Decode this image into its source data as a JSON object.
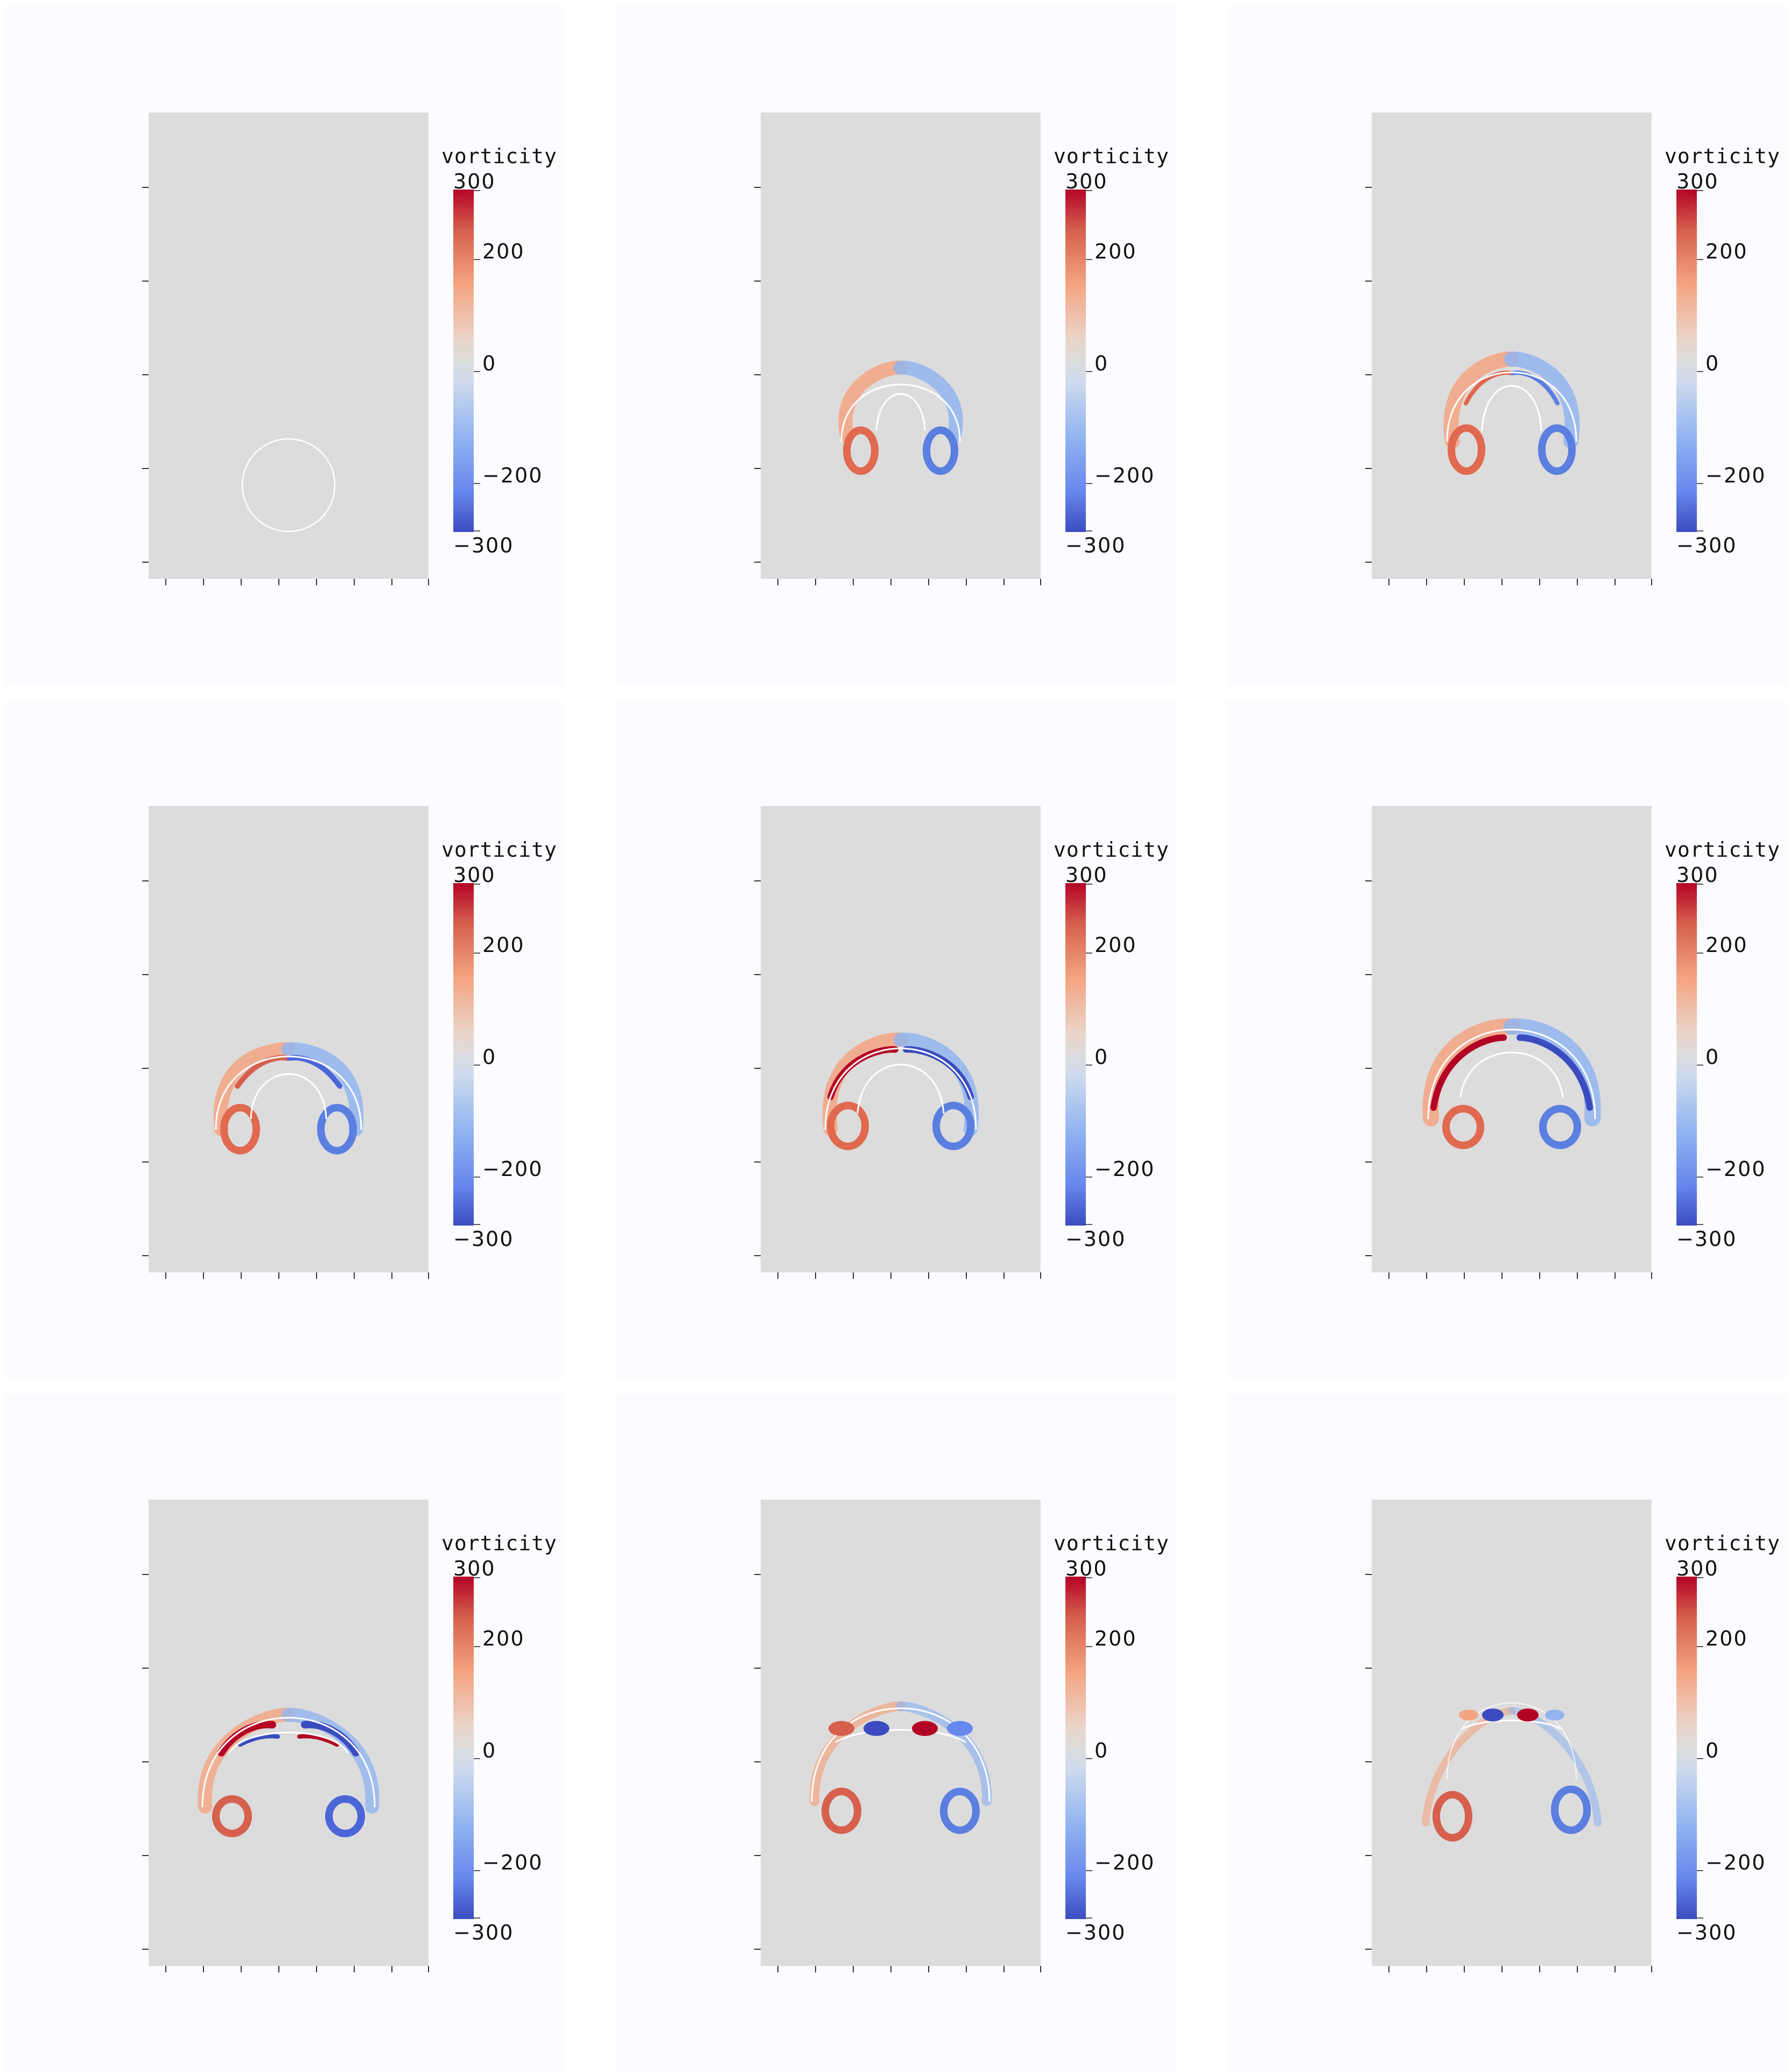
{
  "panels": [
    {
      "colorbar": {
        "title": "vorticity",
        "ticks": [
          "300",
          "200",
          "0",
          "−200",
          "−300"
        ]
      }
    },
    {
      "colorbar": {
        "title": "vorticity",
        "ticks": [
          "300",
          "200",
          "0",
          "−200",
          "−300"
        ]
      }
    },
    {
      "colorbar": {
        "title": "vorticity",
        "ticks": [
          "300",
          "200",
          "0",
          "−200",
          "−300"
        ]
      }
    },
    {
      "colorbar": {
        "title": "vorticity",
        "ticks": [
          "300",
          "200",
          "0",
          "−200",
          "−300"
        ]
      }
    },
    {
      "colorbar": {
        "title": "vorticity",
        "ticks": [
          "300",
          "200",
          "0",
          "−200",
          "−300"
        ]
      }
    },
    {
      "colorbar": {
        "title": "vorticity",
        "ticks": [
          "300",
          "200",
          "0",
          "−200",
          "−300"
        ]
      }
    },
    {
      "colorbar": {
        "title": "vorticity",
        "ticks": [
          "300",
          "200",
          "0",
          "−200",
          "−300"
        ]
      }
    },
    {
      "colorbar": {
        "title": "vorticity",
        "ticks": [
          "300",
          "200",
          "0",
          "−200",
          "−300"
        ]
      }
    },
    {
      "colorbar": {
        "title": "vorticity",
        "ticks": [
          "300",
          "200",
          "0",
          "−200",
          "−300"
        ]
      }
    }
  ],
  "colors": {
    "panel_background": "#fcfbff",
    "domain_background": "#dcdcdc",
    "positive_max": "#b40426",
    "negative_max": "#3b4cc0",
    "contour": "#ffffff"
  }
}
